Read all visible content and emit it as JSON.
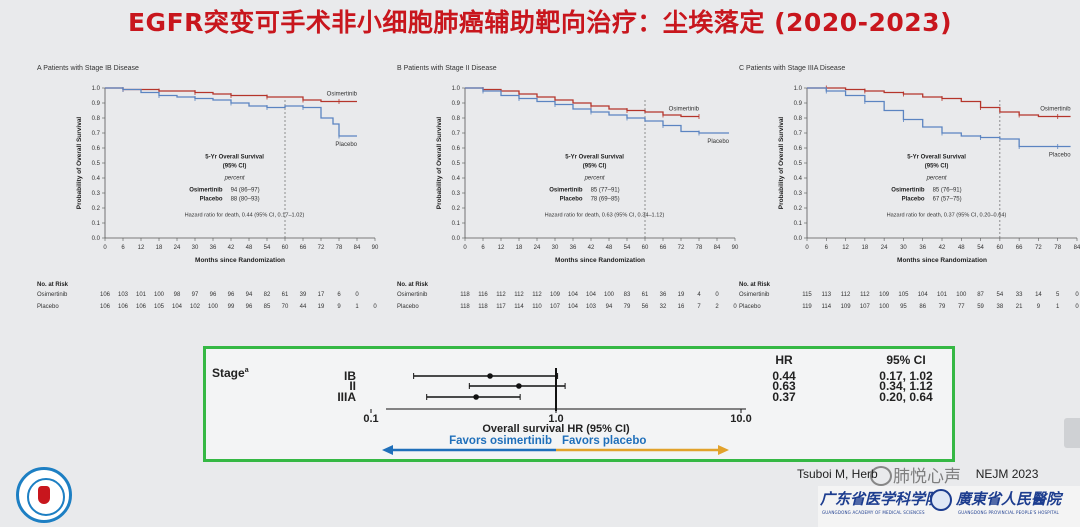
{
  "slide": {
    "title": "EGFR突变可手术非小细胞肺癌辅助靶向治疗：尘埃落定 (2020-2023)",
    "citation": "Tsuboi M, Herb",
    "citation_end": "NEJM 2023",
    "watermark": "肺悦心声",
    "logo_right_1": "广东省医学科学院",
    "logo_right_1_sub": "GUANGDONG ACADEMY OF MEDICAL SCIENCES",
    "logo_right_2": "廣東省人民醫院",
    "logo_right_2_sub": "GUANGDONG PROVINCIAL PEOPLE'S HOSPITAL"
  },
  "colors": {
    "title": "#c8161d",
    "osimertinib": "#b5352b",
    "placebo": "#5b84c1",
    "forest_border": "#35b844",
    "arrow_left": "#1f6fba",
    "arrow_right": "#e2a22b"
  },
  "chart_data": [
    {
      "type": "line",
      "panel_label": "A",
      "title": "Patients with Stage IB Disease",
      "xlabel": "Months since Randomization",
      "ylabel": "Probability of Overall Survival",
      "xlim": [
        0,
        90
      ],
      "ylim": [
        0,
        1.0
      ],
      "xticks": [
        0,
        6,
        12,
        18,
        24,
        30,
        36,
        42,
        48,
        54,
        60,
        66,
        72,
        78,
        84,
        90
      ],
      "yticks": [
        0.0,
        0.1,
        0.2,
        0.3,
        0.4,
        0.5,
        0.6,
        0.7,
        0.8,
        0.9,
        1.0
      ],
      "reference_line_x": 60,
      "series": [
        {
          "name": "Osimertinib",
          "x": [
            0,
            6,
            12,
            18,
            24,
            30,
            36,
            42,
            48,
            54,
            60,
            66,
            72,
            78,
            84
          ],
          "y": [
            1.0,
            0.99,
            0.99,
            0.98,
            0.98,
            0.97,
            0.96,
            0.95,
            0.95,
            0.94,
            0.94,
            0.92,
            0.91,
            0.91,
            0.91
          ]
        },
        {
          "name": "Placebo",
          "x": [
            0,
            6,
            12,
            18,
            24,
            30,
            36,
            42,
            48,
            54,
            60,
            66,
            72,
            76,
            78,
            84
          ],
          "y": [
            1.0,
            0.99,
            0.97,
            0.95,
            0.94,
            0.93,
            0.92,
            0.9,
            0.88,
            0.87,
            0.88,
            0.87,
            0.8,
            0.76,
            0.68,
            0.68
          ]
        }
      ],
      "summary": {
        "heading": "5-Yr Overall Survival",
        "subheading": "(95% CI)",
        "unit": "percent",
        "rows": [
          {
            "arm": "Osimertinib",
            "value": "94 (86–97)"
          },
          {
            "arm": "Placebo",
            "value": "88 (80–93)"
          }
        ],
        "hazard_ratio": "Hazard ratio for death, 0.44 (95% CI, 0.17–1.02)"
      },
      "at_risk": {
        "label": "No. at Risk",
        "rows": [
          {
            "arm": "Osimertinib",
            "values": [
              "106",
              "103",
              "101",
              "100",
              "98",
              "97",
              "96",
              "96",
              "94",
              "82",
              "61",
              "39",
              "17",
              "6",
              "0"
            ]
          },
          {
            "arm": "Placebo",
            "values": [
              "106",
              "106",
              "106",
              "105",
              "104",
              "102",
              "100",
              "99",
              "96",
              "85",
              "70",
              "44",
              "19",
              "9",
              "1",
              "0"
            ]
          }
        ]
      }
    },
    {
      "type": "line",
      "panel_label": "B",
      "title": "Patients with Stage II Disease",
      "xlabel": "Months since Randomization",
      "ylabel": "Probability of Overall Survival",
      "xlim": [
        0,
        90
      ],
      "ylim": [
        0,
        1.0
      ],
      "xticks": [
        0,
        6,
        12,
        18,
        24,
        30,
        36,
        42,
        48,
        54,
        60,
        66,
        72,
        78,
        84,
        90
      ],
      "yticks": [
        0.0,
        0.1,
        0.2,
        0.3,
        0.4,
        0.5,
        0.6,
        0.7,
        0.8,
        0.9,
        1.0
      ],
      "reference_line_x": 60,
      "series": [
        {
          "name": "Osimertinib",
          "x": [
            0,
            6,
            12,
            18,
            24,
            30,
            36,
            42,
            48,
            54,
            60,
            66,
            72,
            78
          ],
          "y": [
            1.0,
            0.99,
            0.98,
            0.96,
            0.94,
            0.92,
            0.9,
            0.88,
            0.86,
            0.85,
            0.84,
            0.82,
            0.81,
            0.81
          ]
        },
        {
          "name": "Placebo",
          "x": [
            0,
            6,
            12,
            18,
            24,
            30,
            36,
            42,
            48,
            54,
            60,
            66,
            72,
            78,
            84,
            88
          ],
          "y": [
            1.0,
            0.98,
            0.95,
            0.93,
            0.91,
            0.89,
            0.86,
            0.84,
            0.82,
            0.8,
            0.78,
            0.75,
            0.71,
            0.7,
            0.7,
            0.7
          ]
        }
      ],
      "summary": {
        "heading": "5-Yr Overall Survival",
        "subheading": "(95% CI)",
        "unit": "percent",
        "rows": [
          {
            "arm": "Osimertinib",
            "value": "85 (77–91)"
          },
          {
            "arm": "Placebo",
            "value": "78 (69–85)"
          }
        ],
        "hazard_ratio": "Hazard ratio for death, 0.63 (95% CI, 0.34–1.12)"
      },
      "at_risk": {
        "label": "No. at Risk",
        "rows": [
          {
            "arm": "Osimertinib",
            "values": [
              "118",
              "116",
              "112",
              "112",
              "112",
              "109",
              "104",
              "104",
              "100",
              "83",
              "61",
              "36",
              "19",
              "4",
              "0"
            ]
          },
          {
            "arm": "Placebo",
            "values": [
              "118",
              "118",
              "117",
              "114",
              "110",
              "107",
              "104",
              "103",
              "94",
              "79",
              "56",
              "32",
              "16",
              "7",
              "2",
              "0"
            ]
          }
        ]
      }
    },
    {
      "type": "line",
      "panel_label": "C",
      "title": "Patients with Stage IIIA Disease",
      "xlabel": "Months since Randomization",
      "ylabel": "Probability of Overall Survival",
      "xlim": [
        0,
        84
      ],
      "ylim": [
        0,
        1.0
      ],
      "xticks": [
        0,
        6,
        12,
        18,
        24,
        30,
        36,
        42,
        48,
        54,
        60,
        66,
        72,
        78,
        84
      ],
      "yticks": [
        0.0,
        0.1,
        0.2,
        0.3,
        0.4,
        0.5,
        0.6,
        0.7,
        0.8,
        0.9,
        1.0
      ],
      "reference_line_x": 60,
      "series": [
        {
          "name": "Osimertinib",
          "x": [
            0,
            6,
            12,
            18,
            24,
            30,
            36,
            42,
            48,
            54,
            60,
            66,
            72,
            78,
            82
          ],
          "y": [
            1.0,
            1.0,
            0.99,
            0.98,
            0.97,
            0.96,
            0.94,
            0.93,
            0.91,
            0.87,
            0.84,
            0.82,
            0.81,
            0.81,
            0.81
          ]
        },
        {
          "name": "Placebo",
          "x": [
            0,
            6,
            12,
            18,
            24,
            30,
            36,
            42,
            48,
            54,
            60,
            66,
            72,
            78,
            82
          ],
          "y": [
            1.0,
            0.98,
            0.95,
            0.91,
            0.85,
            0.79,
            0.74,
            0.7,
            0.68,
            0.67,
            0.66,
            0.61,
            0.61,
            0.61,
            0.61
          ]
        }
      ],
      "summary": {
        "heading": "5-Yr Overall Survival",
        "subheading": "(95% CI)",
        "unit": "percent",
        "rows": [
          {
            "arm": "Osimertinib",
            "value": "85 (76–91)"
          },
          {
            "arm": "Placebo",
            "value": "67 (57–75)"
          }
        ],
        "hazard_ratio": "Hazard ratio for death, 0.37 (95% CI, 0.20–0.64)"
      },
      "at_risk": {
        "label": "No. at Risk",
        "rows": [
          {
            "arm": "Osimertinib",
            "values": [
              "115",
              "113",
              "112",
              "112",
              "109",
              "105",
              "104",
              "101",
              "100",
              "87",
              "54",
              "33",
              "14",
              "5",
              "0"
            ]
          },
          {
            "arm": "Placebo",
            "values": [
              "119",
              "114",
              "109",
              "107",
              "100",
              "95",
              "86",
              "79",
              "77",
              "59",
              "38",
              "21",
              "9",
              "1",
              "0"
            ]
          }
        ]
      }
    },
    {
      "type": "scatter",
      "subtype": "forest",
      "row_header": "Stage",
      "row_header_sup": "a",
      "hr_header": "HR",
      "ci_header": "95% CI",
      "xlabel": "Overall survival HR (95% CI)",
      "xscale": "log",
      "xlim": [
        0.1,
        10.0
      ],
      "xticks": [
        "0.1",
        "1.0",
        "10.0"
      ],
      "favors_left": "Favors osimertinib",
      "favors_right": "Favors placebo",
      "rows": [
        {
          "label": "IB",
          "hr": 0.44,
          "lower": 0.17,
          "upper": 1.02,
          "hr_text": "0.44",
          "ci_text": "0.17, 1.02"
        },
        {
          "label": "II",
          "hr": 0.63,
          "lower": 0.34,
          "upper": 1.12,
          "hr_text": "0.63",
          "ci_text": "0.34, 1.12"
        },
        {
          "label": "IIIA",
          "hr": 0.37,
          "lower": 0.2,
          "upper": 0.64,
          "hr_text": "0.37",
          "ci_text": "0.20, 0.64"
        }
      ]
    }
  ]
}
